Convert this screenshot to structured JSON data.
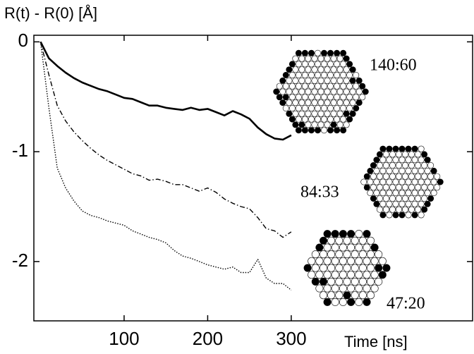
{
  "chart_data": {
    "type": "line",
    "title": "R(t) - R(0) [Å]",
    "x_label": "Time [ns]",
    "x": [
      0,
      10,
      20,
      30,
      40,
      50,
      60,
      70,
      80,
      90,
      100,
      110,
      120,
      130,
      140,
      150,
      160,
      170,
      180,
      190,
      200,
      210,
      220,
      230,
      240,
      250,
      260,
      270,
      280,
      290,
      300
    ],
    "series": [
      {
        "color": "#000000",
        "style": "solid",
        "values": [
          0,
          -0.15,
          -0.22,
          -0.28,
          -0.33,
          -0.37,
          -0.4,
          -0.43,
          -0.45,
          -0.48,
          -0.51,
          -0.52,
          -0.55,
          -0.58,
          -0.58,
          -0.6,
          -0.61,
          -0.62,
          -0.6,
          -0.62,
          -0.61,
          -0.64,
          -0.67,
          -0.63,
          -0.66,
          -0.7,
          -0.78,
          -0.84,
          -0.88,
          -0.89,
          -0.85
        ]
      },
      {
        "color": "#000000",
        "style": "dashdot",
        "values": [
          0,
          -0.3,
          -0.58,
          -0.72,
          -0.82,
          -0.9,
          -0.97,
          -1.03,
          -1.08,
          -1.12,
          -1.16,
          -1.2,
          -1.22,
          -1.26,
          -1.25,
          -1.27,
          -1.3,
          -1.3,
          -1.33,
          -1.36,
          -1.33,
          -1.37,
          -1.43,
          -1.47,
          -1.5,
          -1.52,
          -1.6,
          -1.7,
          -1.72,
          -1.78,
          -1.73
        ]
      },
      {
        "color": "#000000",
        "style": "dotted",
        "values": [
          0,
          -0.6,
          -1.15,
          -1.33,
          -1.45,
          -1.54,
          -1.58,
          -1.6,
          -1.63,
          -1.65,
          -1.67,
          -1.72,
          -1.75,
          -1.78,
          -1.8,
          -1.83,
          -1.9,
          -1.95,
          -1.97,
          -2.0,
          -2.03,
          -2.05,
          -2.07,
          -2.05,
          -2.1,
          -2.1,
          -1.98,
          -2.15,
          -2.2,
          -2.2,
          -2.26
        ]
      }
    ],
    "xlim": [
      -8,
      517
    ],
    "xticks": [
      100,
      200,
      300
    ],
    "ylim": [
      -2.54,
      0.06
    ],
    "yticks": [
      0,
      -1,
      -2
    ],
    "annotations": [
      "140:60",
      "84:33",
      "47:20"
    ]
  }
}
